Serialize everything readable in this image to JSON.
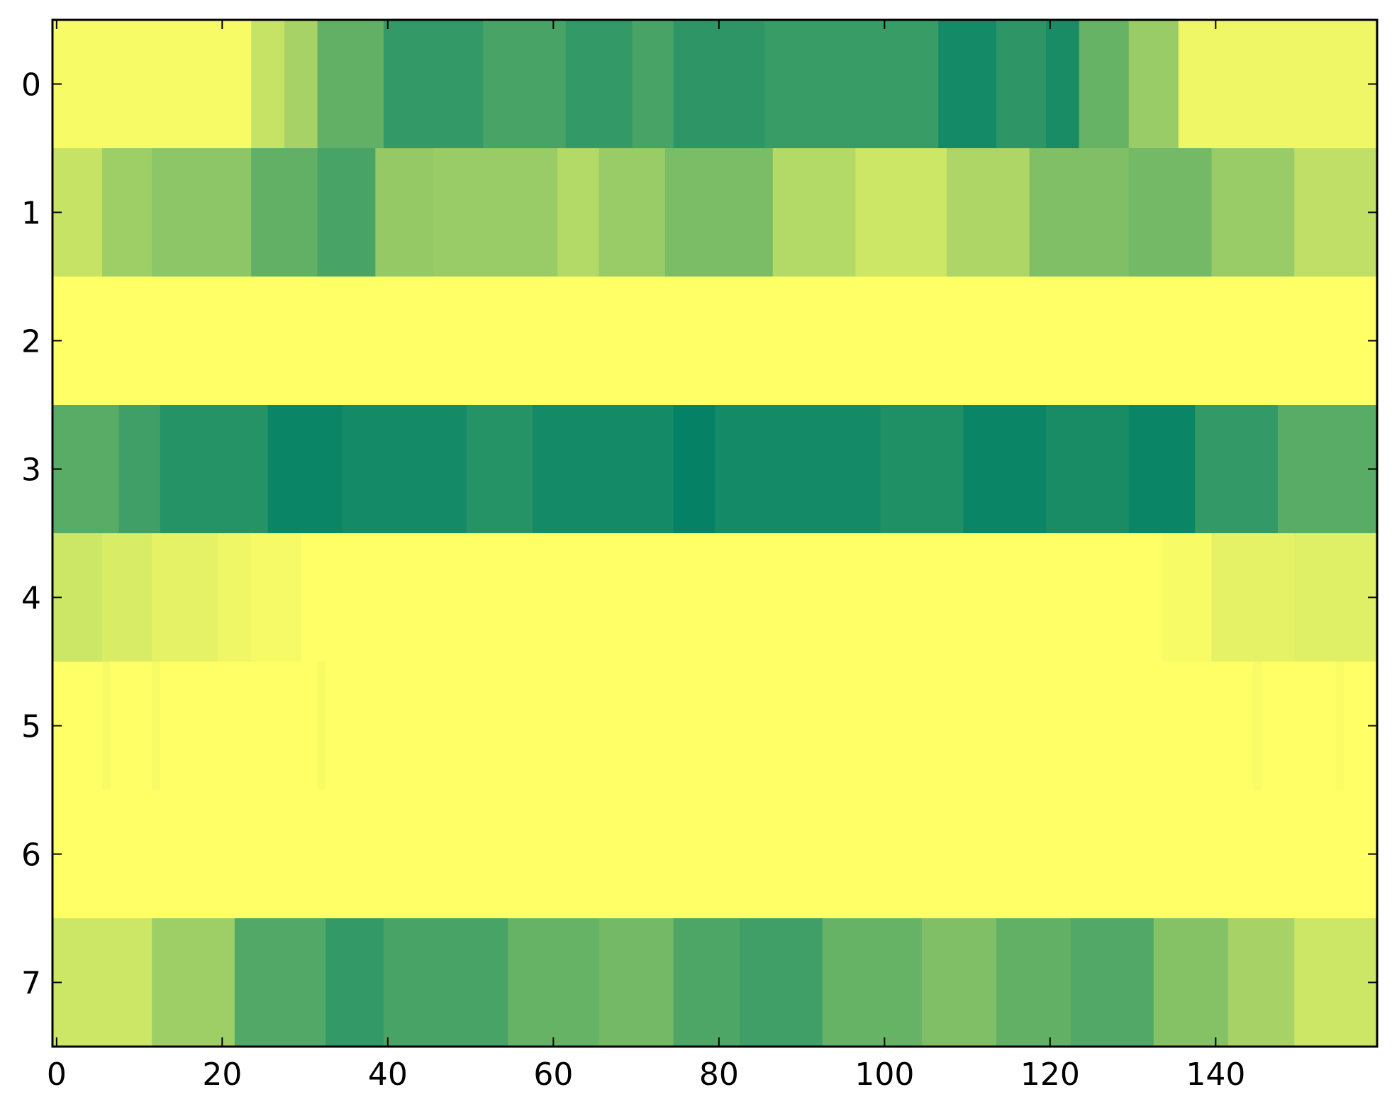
{
  "chart_data": {
    "type": "heatmap",
    "title": "",
    "xlabel": "",
    "ylabel": "",
    "colormap": "summer_r",
    "value_range": [
      0,
      1
    ],
    "x_ticks": [
      0,
      20,
      40,
      60,
      80,
      100,
      120,
      140
    ],
    "x_tick_labels": [
      "0",
      "20",
      "40",
      "60",
      "80",
      "100",
      "120",
      "140"
    ],
    "y_ticks": [
      0,
      1,
      2,
      3,
      4,
      5,
      6,
      7
    ],
    "y_tick_labels": [
      "0",
      "1",
      "2",
      "3",
      "4",
      "5",
      "6",
      "7"
    ],
    "xlim": [
      -0.5,
      159.5
    ],
    "ylim": [
      7.5,
      -0.5
    ],
    "n_columns": 160,
    "rows": [
      {
        "label": "0",
        "segments": [
          [
            0,
            24,
            0.03
          ],
          [
            24,
            28,
            0.22
          ],
          [
            28,
            32,
            0.35
          ],
          [
            32,
            40,
            0.62
          ],
          [
            40,
            52,
            0.8
          ],
          [
            52,
            62,
            0.72
          ],
          [
            62,
            70,
            0.8
          ],
          [
            70,
            75,
            0.72
          ],
          [
            75,
            86,
            0.82
          ],
          [
            86,
            107,
            0.78
          ],
          [
            107,
            114,
            0.92
          ],
          [
            114,
            120,
            0.82
          ],
          [
            120,
            124,
            0.9
          ],
          [
            124,
            130,
            0.6
          ],
          [
            130,
            136,
            0.4
          ],
          [
            136,
            160,
            0.06
          ]
        ]
      },
      {
        "label": "1",
        "segments": [
          [
            0,
            6,
            0.22
          ],
          [
            6,
            12,
            0.38
          ],
          [
            12,
            24,
            0.45
          ],
          [
            24,
            32,
            0.62
          ],
          [
            32,
            39,
            0.72
          ],
          [
            39,
            46,
            0.42
          ],
          [
            46,
            61,
            0.4
          ],
          [
            61,
            66,
            0.3
          ],
          [
            66,
            74,
            0.4
          ],
          [
            74,
            87,
            0.52
          ],
          [
            87,
            97,
            0.3
          ],
          [
            97,
            108,
            0.2
          ],
          [
            108,
            118,
            0.32
          ],
          [
            118,
            130,
            0.5
          ],
          [
            130,
            140,
            0.55
          ],
          [
            140,
            150,
            0.4
          ],
          [
            150,
            160,
            0.25
          ]
        ]
      },
      {
        "label": "2",
        "segments": [
          [
            0,
            160,
            0.0
          ]
        ]
      },
      {
        "label": "3",
        "segments": [
          [
            0,
            8,
            0.65
          ],
          [
            8,
            13,
            0.75
          ],
          [
            13,
            26,
            0.85
          ],
          [
            26,
            35,
            0.96
          ],
          [
            35,
            50,
            0.92
          ],
          [
            50,
            58,
            0.85
          ],
          [
            58,
            75,
            0.92
          ],
          [
            75,
            80,
            0.98
          ],
          [
            80,
            100,
            0.92
          ],
          [
            100,
            110,
            0.88
          ],
          [
            110,
            120,
            0.96
          ],
          [
            120,
            130,
            0.9
          ],
          [
            130,
            138,
            0.96
          ],
          [
            138,
            148,
            0.8
          ],
          [
            148,
            160,
            0.65
          ]
        ]
      },
      {
        "label": "4",
        "segments": [
          [
            0,
            6,
            0.2
          ],
          [
            6,
            12,
            0.15
          ],
          [
            12,
            20,
            0.1
          ],
          [
            20,
            24,
            0.06
          ],
          [
            24,
            30,
            0.04
          ],
          [
            30,
            134,
            0.0
          ],
          [
            134,
            140,
            0.03
          ],
          [
            140,
            150,
            0.1
          ],
          [
            150,
            160,
            0.12
          ]
        ]
      },
      {
        "label": "5",
        "segments": [
          [
            0,
            6,
            0.0
          ],
          [
            6,
            7,
            0.03
          ],
          [
            7,
            12,
            0.0
          ],
          [
            12,
            13,
            0.03
          ],
          [
            13,
            32,
            0.0
          ],
          [
            32,
            33,
            0.03
          ],
          [
            33,
            145,
            0.0
          ],
          [
            145,
            146,
            0.03
          ],
          [
            146,
            155,
            0.0
          ],
          [
            155,
            156,
            0.02
          ],
          [
            156,
            160,
            0.0
          ]
        ]
      },
      {
        "label": "6",
        "segments": [
          [
            0,
            160,
            0.0
          ]
        ]
      },
      {
        "label": "7",
        "segments": [
          [
            0,
            12,
            0.2
          ],
          [
            12,
            22,
            0.38
          ],
          [
            22,
            33,
            0.68
          ],
          [
            33,
            40,
            0.8
          ],
          [
            40,
            55,
            0.72
          ],
          [
            55,
            66,
            0.6
          ],
          [
            66,
            75,
            0.55
          ],
          [
            75,
            83,
            0.7
          ],
          [
            83,
            93,
            0.75
          ],
          [
            93,
            105,
            0.6
          ],
          [
            105,
            114,
            0.5
          ],
          [
            114,
            123,
            0.62
          ],
          [
            123,
            133,
            0.68
          ],
          [
            133,
            142,
            0.48
          ],
          [
            142,
            150,
            0.35
          ],
          [
            150,
            160,
            0.2
          ]
        ]
      }
    ]
  }
}
